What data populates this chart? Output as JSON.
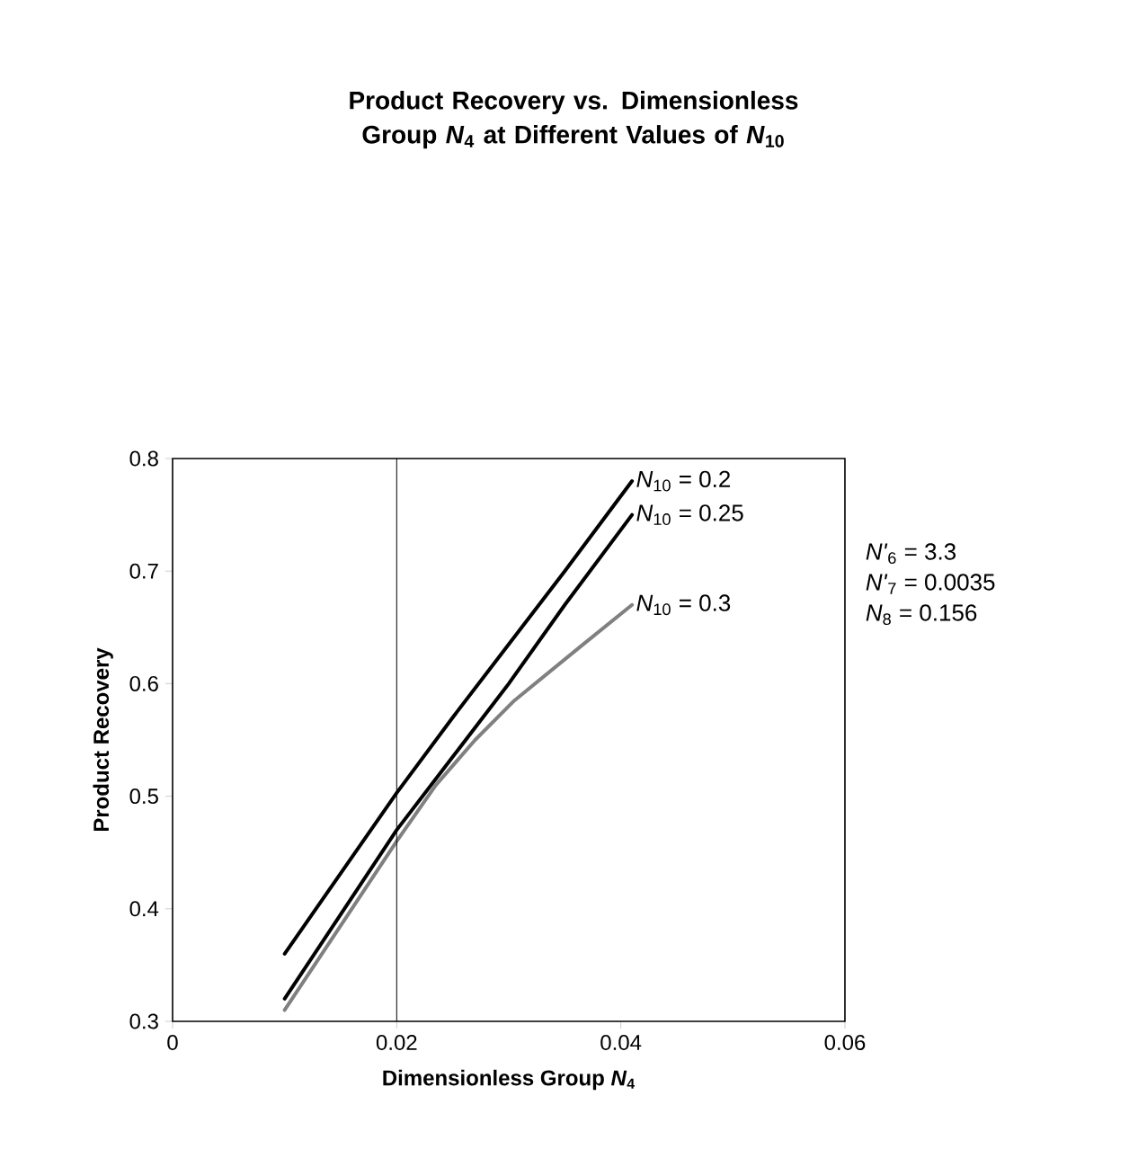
{
  "chart_data": {
    "type": "line",
    "title": "Product Recovery vs. Dimensionless Group *N*$_{4}$ at Different Values of *N*$_{10}$",
    "xlabel": "Dimensionless Group *N*$_{4}$",
    "ylabel": "Product Recovery",
    "xlim": [
      0,
      0.06
    ],
    "xticks": [
      0,
      0.02,
      0.04,
      0.06
    ],
    "ylim": [
      0.3,
      0.8
    ],
    "yticks": [
      0.3,
      0.4,
      0.5,
      0.6,
      0.7,
      0.8
    ],
    "series": [
      {
        "name": "*N*$_{10}$  = 0.2",
        "color": "#000000",
        "x": [
          0.01,
          0.02,
          0.025,
          0.03,
          0.035,
          0.041
        ],
        "values": [
          0.36,
          0.503,
          0.57,
          0.635,
          0.7,
          0.78
        ]
      },
      {
        "name": "*N*$_{10}$  = 0.25",
        "color": "#000000",
        "x": [
          0.01,
          0.02,
          0.025,
          0.03,
          0.035,
          0.041
        ],
        "values": [
          0.32,
          0.47,
          0.535,
          0.6,
          0.67,
          0.75
        ]
      },
      {
        "name": "*N*$_{10}$  = 0.3",
        "color": "#808080",
        "x": [
          0.01,
          0.015,
          0.02,
          0.0235,
          0.027,
          0.0305,
          0.0364,
          0.041
        ],
        "values": [
          0.31,
          0.385,
          0.46,
          0.51,
          0.55,
          0.585,
          0.633,
          0.67
        ]
      }
    ],
    "ref_lines": [
      {
        "axis": "x",
        "value": 0.02,
        "color": "#000000"
      }
    ],
    "annotations": [
      "*N'*$_{6}$ = 3.3",
      "*N'*$_{7}$ = 0.0035",
      "*N*$_{8}$ = 0.156"
    ]
  }
}
